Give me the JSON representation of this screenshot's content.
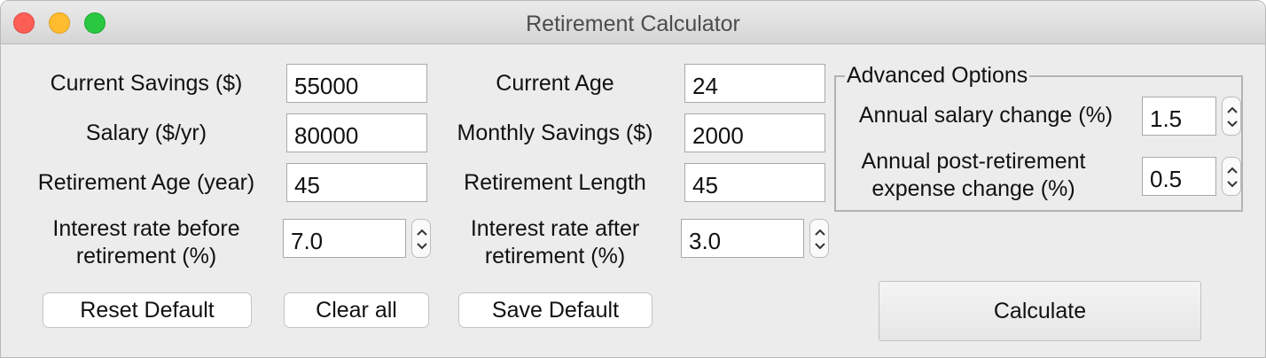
{
  "window": {
    "title": "Retirement Calculator"
  },
  "left": {
    "current_savings": {
      "label": "Current Savings ($)",
      "value": "55000"
    },
    "salary": {
      "label": "Salary ($/yr)",
      "value": "80000"
    },
    "retirement_age": {
      "label": "Retirement Age (year)",
      "value": "45"
    },
    "interest_before": {
      "label_line1": "Interest rate before",
      "label_line2": "retirement (%)",
      "value": "7.0"
    }
  },
  "middle": {
    "current_age": {
      "label": "Current Age",
      "value": "24"
    },
    "monthly_savings": {
      "label": "Monthly Savings ($)",
      "value": "2000"
    },
    "retirement_length": {
      "label": "Retirement Length",
      "value": "45"
    },
    "interest_after": {
      "label_line1": "Interest rate after",
      "label_line2": "retirement (%)",
      "value": "3.0"
    }
  },
  "advanced": {
    "title": "Advanced Options",
    "salary_change": {
      "label": "Annual salary change (%)",
      "value": "1.5"
    },
    "expense_change": {
      "label_line1": "Annual post-retirement",
      "label_line2": "expense change (%)",
      "value": "0.5"
    }
  },
  "buttons": {
    "reset": "Reset Default",
    "clear": "Clear all",
    "save": "Save Default",
    "calculate": "Calculate"
  }
}
